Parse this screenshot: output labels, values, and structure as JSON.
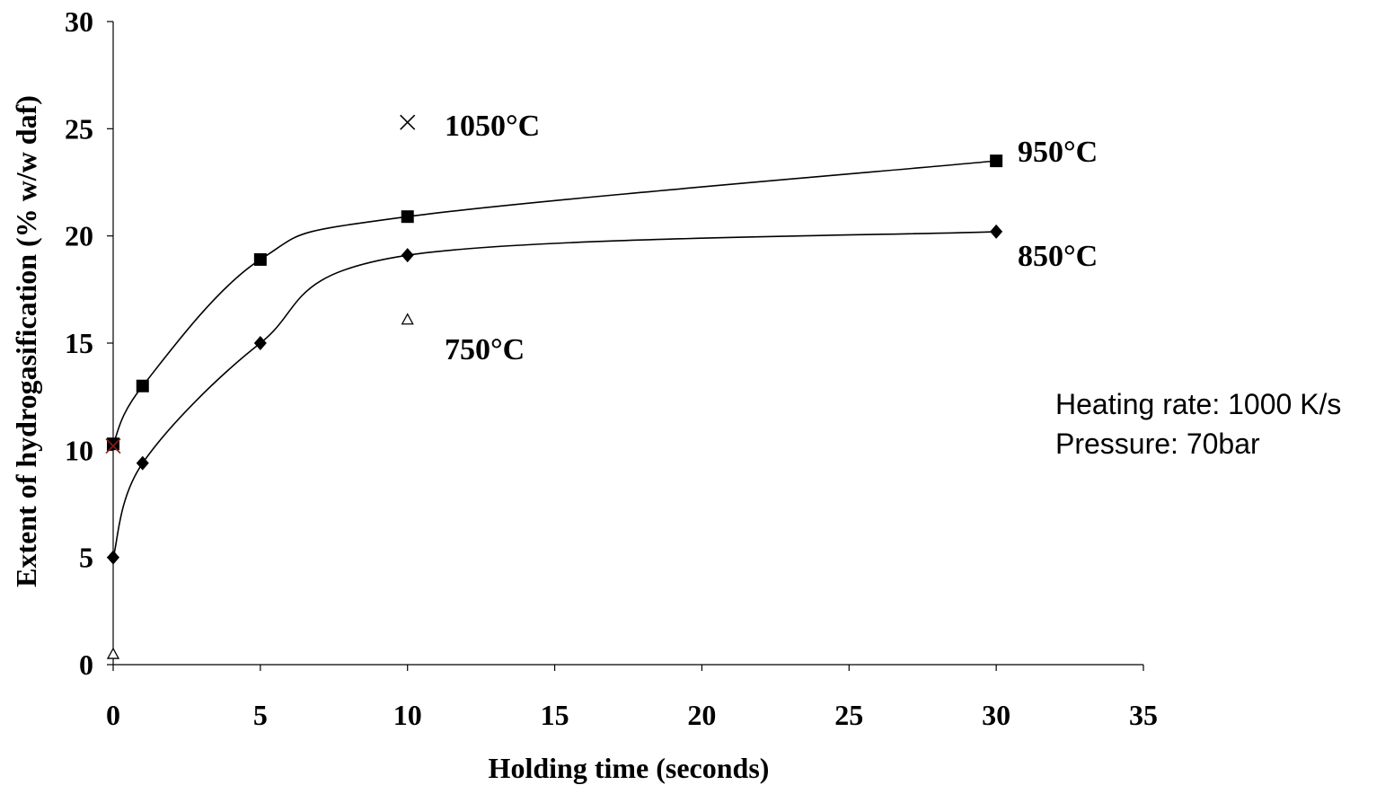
{
  "chart_data": {
    "type": "scatter",
    "xlabel": "Holding time (seconds)",
    "ylabel": "Extent of hydrogasification (% w/w daf)",
    "xlim": [
      0,
      35
    ],
    "ylim": [
      0,
      30
    ],
    "xticks": [
      "0",
      "5",
      "10",
      "15",
      "20",
      "25",
      "30",
      "35"
    ],
    "yticks": [
      "0",
      "5",
      "10",
      "15",
      "20",
      "25",
      "30"
    ],
    "grid": false,
    "legend": "none",
    "series": [
      {
        "name": "950°C",
        "marker": "square",
        "smooth_line": true,
        "x": [
          0,
          1,
          5,
          10,
          30
        ],
        "y": [
          10.3,
          13.0,
          18.9,
          20.9,
          23.5
        ]
      },
      {
        "name": "850°C",
        "marker": "diamond",
        "smooth_line": true,
        "x": [
          0,
          1,
          5,
          10,
          30
        ],
        "y": [
          5.0,
          9.4,
          15.0,
          19.1,
          20.2
        ]
      },
      {
        "name": "750°C",
        "marker": "open-triangle",
        "smooth_line": false,
        "x": [
          0,
          10
        ],
        "y": [
          0.5,
          16.1
        ]
      },
      {
        "name": "1050°C",
        "marker": "x",
        "smooth_line": false,
        "x": [
          0,
          10
        ],
        "y": [
          10.2,
          25.3
        ]
      }
    ],
    "annotations": [
      "Heating rate: 1000 K/s",
      "Pressure: 70bar"
    ]
  },
  "colors": {
    "axis": "#000000",
    "line": "#000000",
    "cross_at_origin": "#8b1a1a"
  }
}
